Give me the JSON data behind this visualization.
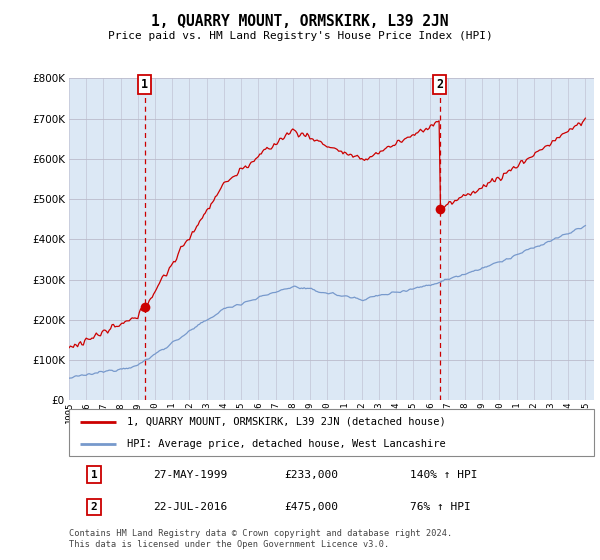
{
  "title": "1, QUARRY MOUNT, ORMSKIRK, L39 2JN",
  "subtitle": "Price paid vs. HM Land Registry's House Price Index (HPI)",
  "ylim": [
    0,
    800000
  ],
  "xlim_start": 1995.0,
  "xlim_end": 2025.5,
  "sale1_date": 1999.4,
  "sale1_price": 233000,
  "sale2_date": 2016.55,
  "sale2_price": 475000,
  "legend_line1": "1, QUARRY MOUNT, ORMSKIRK, L39 2JN (detached house)",
  "legend_line2": "HPI: Average price, detached house, West Lancashire",
  "table_row1": [
    "1",
    "27-MAY-1999",
    "£233,000",
    "140% ↑ HPI"
  ],
  "table_row2": [
    "2",
    "22-JUL-2016",
    "£475,000",
    "76% ↑ HPI"
  ],
  "footnote": "Contains HM Land Registry data © Crown copyright and database right 2024.\nThis data is licensed under the Open Government Licence v3.0.",
  "line_color_red": "#cc0000",
  "line_color_blue": "#7799cc",
  "bg_fill_color": "#dce8f5",
  "grid_color": "#bbbbcc",
  "background_color": "#ffffff"
}
